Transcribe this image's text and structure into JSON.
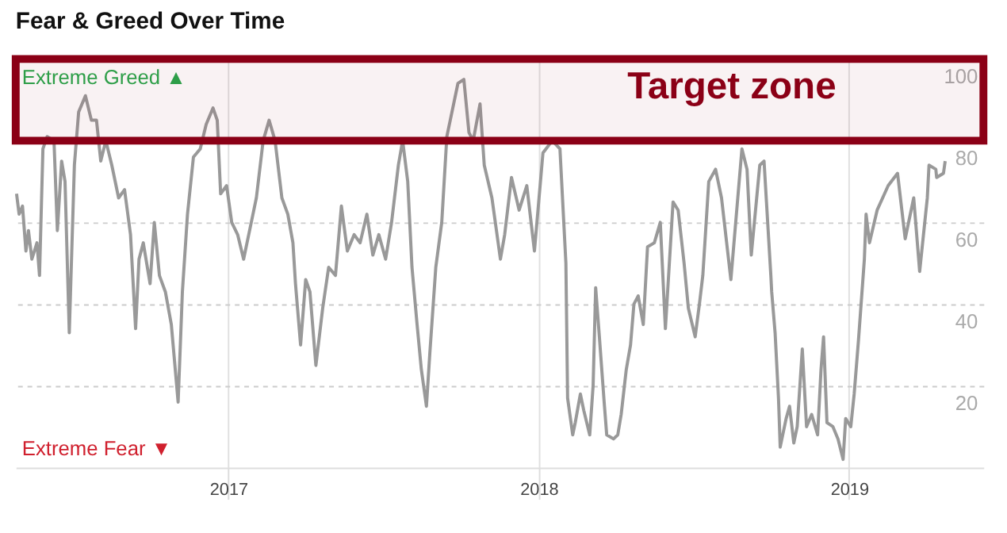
{
  "chart_data": {
    "type": "line",
    "title": "Fear & Greed Over Time",
    "x": [
      "2016-04-27",
      "2016-04-30",
      "2016-05-04",
      "2016-05-08",
      "2016-05-11",
      "2016-05-15",
      "2016-05-21",
      "2016-05-24",
      "2016-05-28",
      "2016-06-02",
      "2016-06-10",
      "2016-06-14",
      "2016-06-19",
      "2016-06-23",
      "2016-06-28",
      "2016-07-04",
      "2016-07-09",
      "2016-07-17",
      "2016-07-24",
      "2016-07-30",
      "2016-08-04",
      "2016-08-10",
      "2016-08-17",
      "2016-08-25",
      "2016-09-01",
      "2016-09-08",
      "2016-09-14",
      "2016-09-18",
      "2016-09-23",
      "2016-10-01",
      "2016-10-06",
      "2016-10-12",
      "2016-10-19",
      "2016-10-26",
      "2016-11-03",
      "2016-11-08",
      "2016-11-14",
      "2016-11-21",
      "2016-11-29",
      "2016-12-06",
      "2016-12-14",
      "2016-12-19",
      "2016-12-23",
      "2016-12-30",
      "2017-01-05",
      "2017-01-12",
      "2017-01-19",
      "2017-01-27",
      "2017-02-03",
      "2017-02-11",
      "2017-02-18",
      "2017-02-25",
      "2017-03-05",
      "2017-03-12",
      "2017-03-18",
      "2017-03-21",
      "2017-03-27",
      "2017-04-02",
      "2017-04-07",
      "2017-04-14",
      "2017-04-22",
      "2017-04-29",
      "2017-05-07",
      "2017-05-14",
      "2017-05-21",
      "2017-05-29",
      "2017-06-05",
      "2017-06-13",
      "2017-06-20",
      "2017-06-27",
      "2017-07-05",
      "2017-07-12",
      "2017-07-20",
      "2017-07-25",
      "2017-07-31",
      "2017-08-05",
      "2017-08-11",
      "2017-08-16",
      "2017-08-22",
      "2017-08-26",
      "2017-09-02",
      "2017-09-09",
      "2017-09-15",
      "2017-09-20",
      "2017-09-28",
      "2017-10-05",
      "2017-10-11",
      "2017-10-16",
      "2017-10-24",
      "2017-10-29",
      "2017-11-07",
      "2017-11-17",
      "2017-11-22",
      "2017-11-30",
      "2017-12-09",
      "2017-12-18",
      "2017-12-27",
      "2018-01-06",
      "2018-01-17",
      "2018-01-26",
      "2018-02-02",
      "2018-02-04",
      "2018-02-10",
      "2018-02-13",
      "2018-02-19",
      "2018-02-23",
      "2018-03-02",
      "2018-03-06",
      "2018-03-09",
      "2018-03-13",
      "2018-03-19",
      "2018-03-22",
      "2018-03-30",
      "2018-04-04",
      "2018-04-08",
      "2018-04-14",
      "2018-04-19",
      "2018-04-23",
      "2018-04-28",
      "2018-05-04",
      "2018-05-09",
      "2018-05-17",
      "2018-05-24",
      "2018-05-30",
      "2018-06-08",
      "2018-06-14",
      "2018-06-21",
      "2018-06-26",
      "2018-07-04",
      "2018-07-09",
      "2018-07-13",
      "2018-07-20",
      "2018-07-28",
      "2018-08-04",
      "2018-08-15",
      "2018-08-28",
      "2018-09-03",
      "2018-09-08",
      "2018-09-18",
      "2018-09-23",
      "2018-10-01",
      "2018-10-02",
      "2018-10-06",
      "2018-10-10",
      "2018-10-12",
      "2018-10-19",
      "2018-10-23",
      "2018-10-28",
      "2018-11-01",
      "2018-11-07",
      "2018-11-12",
      "2018-11-18",
      "2018-11-25",
      "2018-11-29",
      "2018-12-02",
      "2018-12-06",
      "2018-12-13",
      "2018-12-19",
      "2018-12-25",
      "2018-12-28",
      "2019-01-03",
      "2019-01-07",
      "2019-01-12",
      "2019-01-19",
      "2019-01-21",
      "2019-01-25",
      "2019-02-03",
      "2019-02-16",
      "2019-02-27",
      "2019-03-08",
      "2019-03-18",
      "2019-03-25",
      "2019-04-03",
      "2019-04-05",
      "2019-04-13",
      "2019-04-14",
      "2019-04-22",
      "2019-04-24"
    ],
    "series": [
      {
        "color": "#999999",
        "values": [
          67,
          62,
          64,
          53,
          58,
          51,
          55,
          47,
          78,
          81,
          80,
          58,
          75,
          70,
          33,
          74,
          87,
          91,
          85,
          85,
          75,
          80,
          74,
          66,
          68,
          57,
          34,
          51,
          55,
          45,
          60,
          47,
          43,
          35,
          16,
          43,
          62,
          76,
          78,
          84,
          88,
          85,
          67,
          69,
          60,
          57,
          51,
          59,
          66,
          80,
          85,
          80,
          66,
          62,
          55,
          45,
          30,
          46,
          43,
          25,
          39,
          49,
          47,
          64,
          53,
          57,
          55,
          62,
          52,
          57,
          51,
          60,
          74,
          80,
          70,
          49,
          35,
          24,
          15,
          28,
          49,
          60,
          81,
          86,
          94,
          95,
          82,
          80,
          89,
          74,
          66,
          51,
          57,
          71,
          63,
          69,
          53,
          77,
          80,
          78,
          50,
          17,
          8,
          11,
          18,
          14,
          8,
          20,
          44,
          33,
          16,
          8,
          7,
          8,
          13,
          24,
          30,
          40,
          42,
          35,
          54,
          55,
          60,
          34,
          65,
          63,
          50,
          39,
          32,
          40,
          47,
          70,
          73,
          66,
          46,
          78,
          73,
          52,
          74,
          75,
          47,
          43,
          33,
          17,
          5,
          12,
          15,
          6,
          10,
          29,
          10,
          13,
          8,
          24,
          32,
          11,
          10,
          7,
          2,
          12,
          10,
          18,
          31,
          51,
          62,
          55,
          63,
          69,
          72,
          56,
          66,
          48,
          66,
          74,
          73,
          71,
          72,
          75
        ]
      }
    ],
    "xlim": [
      "2016-04-26",
      "2019-06-08"
    ],
    "xticks": [
      "2017",
      "2018",
      "2019"
    ],
    "ylim": [
      0,
      100
    ],
    "yticks": [
      20,
      40,
      60,
      80,
      100
    ],
    "grid": true,
    "bands": [
      {
        "axis": "y",
        "from": 80,
        "to": 100,
        "label": "Target zone",
        "color": "#8b0016"
      }
    ],
    "annotations": [
      "Extreme Greed ▲",
      "Extreme Fear ▼"
    ]
  }
}
